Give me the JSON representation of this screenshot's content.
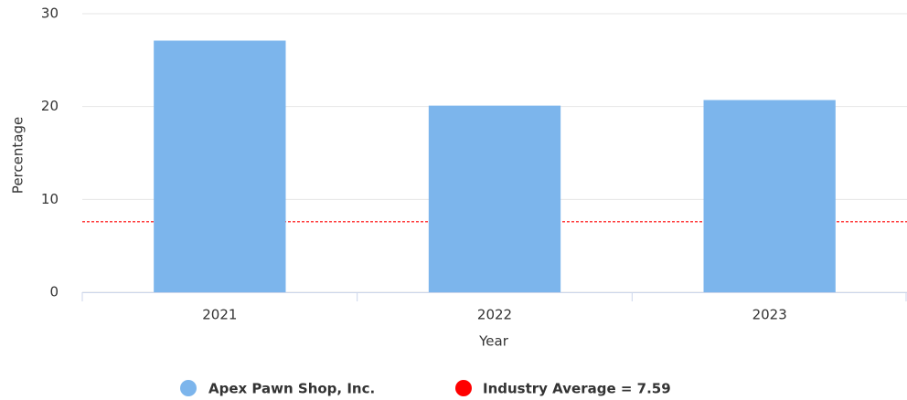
{
  "chart_data": {
    "type": "bar",
    "categories": [
      "2021",
      "2022",
      "2023"
    ],
    "series": [
      {
        "name": "Apex Pawn Shop, Inc.",
        "color": "#7cb5ec",
        "values": [
          27.1,
          20.1,
          20.7
        ]
      }
    ],
    "reference_line": {
      "name": "Industry Average = 7.59",
      "value": 7.59,
      "color": "#ff0000"
    },
    "x_label": "Year",
    "y_label": "Percentage",
    "ylim": [
      0,
      30
    ],
    "yticks": [
      0,
      10,
      20,
      30
    ],
    "grid": true
  }
}
